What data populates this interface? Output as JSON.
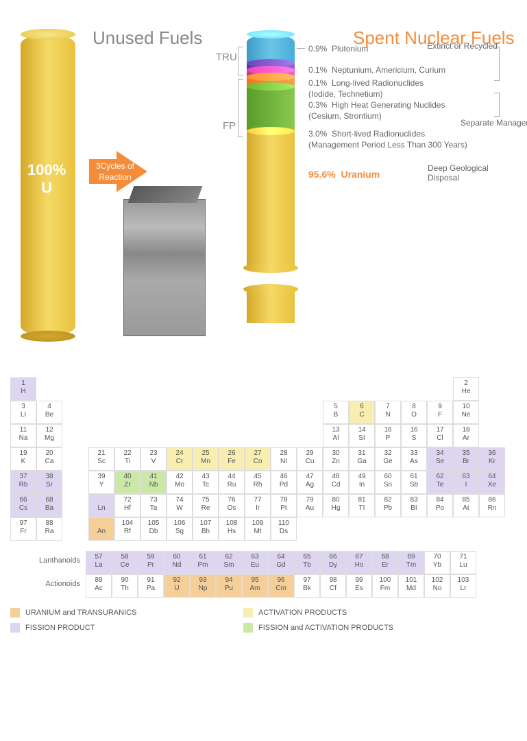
{
  "headers": {
    "unused": "Unused Fuels",
    "spent": "Spent Nuclear Fuels",
    "u100a": "100%",
    "u100b": "U",
    "reaction": "3Cycles of Reaction",
    "tru": "TRU",
    "fp": "FP"
  },
  "segs": [
    {
      "pct": "0.9%",
      "txt": "Plutonium"
    },
    {
      "pct": "0.1%",
      "txt": "Neptunium, Americium, Curium"
    },
    {
      "pct": "0.1%",
      "txt": "Long-lived Radionuclides\n(Iodide, Technetium)"
    },
    {
      "pct": "0.3%",
      "txt": "High Heat Generating Nuclides\n(Cesium, Strontium)"
    },
    {
      "pct": "3.0%",
      "txt": "Short-lived Radionuclides\n(Management Period Less Than 300 Years)"
    },
    {
      "pct": "95.6%",
      "txt": "Uranium"
    }
  ],
  "disposal": [
    "Extinct  or Recycled",
    "Separate Management",
    "Deep Geological Disposal"
  ],
  "colors": {
    "fp": "#ded5f0",
    "ap": "#f7eeb0",
    "fap": "#cce8a8",
    "ut": "#f5cf9a"
  },
  "legend": [
    {
      "c": "#f5cf9a",
      "t": "URANIUM and TRANSURANICS"
    },
    {
      "c": "#f7eeb0",
      "t": "ACTIVATION PRODUCTS"
    },
    {
      "c": "#ded5f0",
      "t": "FISSION PRODUCT"
    },
    {
      "c": "#cce8a8",
      "t": "FISSION and ACTIVATION PRODUCTS"
    }
  ],
  "series": {
    "lanth": "Lanthanoids",
    "act": "Actionoids"
  },
  "rows": [
    [
      {
        "n": "1",
        "s": "H",
        "c": "fp"
      },
      {
        "g": 16
      },
      {
        "n": "2",
        "s": "He"
      }
    ],
    [
      {
        "n": "3",
        "s": "LI"
      },
      {
        "n": "4",
        "s": "Be"
      },
      {
        "g": 10
      },
      {
        "n": "5",
        "s": "B"
      },
      {
        "n": "6",
        "s": "C",
        "c": "ap"
      },
      {
        "n": "7",
        "s": "N"
      },
      {
        "n": "8",
        "s": "O"
      },
      {
        "n": "9",
        "s": "F"
      },
      {
        "n": "10",
        "s": "Ne"
      }
    ],
    [
      {
        "n": "11",
        "s": "Na"
      },
      {
        "n": "12",
        "s": "Mg"
      },
      {
        "g": 10
      },
      {
        "n": "13",
        "s": "Al"
      },
      {
        "n": "14",
        "s": "SI"
      },
      {
        "n": "16",
        "s": "P"
      },
      {
        "n": "16",
        "s": "S"
      },
      {
        "n": "17",
        "s": "Cl"
      },
      {
        "n": "18",
        "s": "Ar"
      }
    ],
    [
      {
        "n": "19",
        "s": "K"
      },
      {
        "n": "20",
        "s": "Ca"
      },
      {
        "g": 1
      },
      {
        "n": "21",
        "s": "Sc"
      },
      {
        "n": "22",
        "s": "Ti"
      },
      {
        "n": "23",
        "s": "V"
      },
      {
        "n": "24",
        "s": "Cr",
        "c": "ap"
      },
      {
        "n": "25",
        "s": "Mn",
        "c": "ap"
      },
      {
        "n": "26",
        "s": "Fe",
        "c": "ap"
      },
      {
        "n": "27",
        "s": "Co",
        "c": "ap"
      },
      {
        "n": "28",
        "s": "NI"
      },
      {
        "n": "29",
        "s": "Cu"
      },
      {
        "n": "30",
        "s": "Zn"
      },
      {
        "n": "31",
        "s": "Ga"
      },
      {
        "n": "32",
        "s": "Ge"
      },
      {
        "n": "33",
        "s": "As"
      },
      {
        "n": "34",
        "s": "Se",
        "c": "fp"
      },
      {
        "n": "35",
        "s": "Br",
        "c": "fp"
      },
      {
        "n": "36",
        "s": "Kr",
        "c": "fp"
      }
    ],
    [
      {
        "n": "37",
        "s": "Rb",
        "c": "fp"
      },
      {
        "n": "38",
        "s": "Sr",
        "c": "fp"
      },
      {
        "g": 1
      },
      {
        "n": "39",
        "s": "Y"
      },
      {
        "n": "40",
        "s": "Zr",
        "c": "fap"
      },
      {
        "n": "41",
        "s": "Nb",
        "c": "fap"
      },
      {
        "n": "42",
        "s": "Mo"
      },
      {
        "n": "43",
        "s": "Tc"
      },
      {
        "n": "44",
        "s": "Ru"
      },
      {
        "n": "45",
        "s": "Rh"
      },
      {
        "n": "46",
        "s": "Pd"
      },
      {
        "n": "47",
        "s": "Ag"
      },
      {
        "n": "48",
        "s": "Cd"
      },
      {
        "n": "49",
        "s": "In"
      },
      {
        "n": "60",
        "s": "Sn"
      },
      {
        "n": "61",
        "s": "Sb"
      },
      {
        "n": "62",
        "s": "Te",
        "c": "fp"
      },
      {
        "n": "63",
        "s": "I",
        "c": "fp"
      },
      {
        "n": "64",
        "s": "Xe",
        "c": "fp"
      }
    ],
    [
      {
        "n": "66",
        "s": "Cs",
        "c": "fp"
      },
      {
        "n": "68",
        "s": "Ba",
        "c": "fp"
      },
      {
        "g": 1
      },
      {
        "n": "",
        "s": "Ln",
        "c": "fp"
      },
      {
        "n": "72",
        "s": "Hf"
      },
      {
        "n": "73",
        "s": "Ta"
      },
      {
        "n": "74",
        "s": "W"
      },
      {
        "n": "75",
        "s": "Re"
      },
      {
        "n": "76",
        "s": "Os"
      },
      {
        "n": "77",
        "s": "Ir"
      },
      {
        "n": "78",
        "s": "Pt"
      },
      {
        "n": "79",
        "s": "Au"
      },
      {
        "n": "80",
        "s": "Hg"
      },
      {
        "n": "81",
        "s": "TI"
      },
      {
        "n": "82",
        "s": "Pb"
      },
      {
        "n": "83",
        "s": "BI"
      },
      {
        "n": "84",
        "s": "Po"
      },
      {
        "n": "85",
        "s": "At"
      },
      {
        "n": "86",
        "s": "Rn"
      }
    ],
    [
      {
        "n": "97",
        "s": "Fr"
      },
      {
        "n": "88",
        "s": "Ra"
      },
      {
        "g": 1
      },
      {
        "n": "",
        "s": "An",
        "c": "ut"
      },
      {
        "n": "104",
        "s": "Rf"
      },
      {
        "n": "105",
        "s": "Db"
      },
      {
        "n": "106",
        "s": "Sg"
      },
      {
        "n": "107",
        "s": "Bh"
      },
      {
        "n": "108",
        "s": "Hs"
      },
      {
        "n": "109",
        "s": "Mt"
      },
      {
        "n": "110",
        "s": "Ds"
      },
      {
        "g": 7
      }
    ]
  ],
  "lanth": [
    {
      "n": "57",
      "s": "La",
      "c": "fp"
    },
    {
      "n": "58",
      "s": "Ce",
      "c": "fp"
    },
    {
      "n": "59",
      "s": "Pr",
      "c": "fp"
    },
    {
      "n": "60",
      "s": "Nd",
      "c": "fp"
    },
    {
      "n": "61",
      "s": "Pm",
      "c": "fp"
    },
    {
      "n": "62",
      "s": "Sm",
      "c": "fp"
    },
    {
      "n": "63",
      "s": "Eu",
      "c": "fp"
    },
    {
      "n": "64",
      "s": "Gd",
      "c": "fp"
    },
    {
      "n": "65",
      "s": "Tb",
      "c": "fp"
    },
    {
      "n": "66",
      "s": "Dy",
      "c": "fp"
    },
    {
      "n": "67",
      "s": "Ho",
      "c": "fp"
    },
    {
      "n": "68",
      "s": "Er",
      "c": "fp"
    },
    {
      "n": "69",
      "s": "Tm",
      "c": "fp"
    },
    {
      "n": "70",
      "s": "Yb"
    },
    {
      "n": "71",
      "s": "Lu"
    }
  ],
  "act": [
    {
      "n": "89",
      "s": "Ac"
    },
    {
      "n": "90",
      "s": "Th"
    },
    {
      "n": "91",
      "s": "Pa"
    },
    {
      "n": "92",
      "s": "U",
      "c": "ut"
    },
    {
      "n": "93",
      "s": "Np",
      "c": "ut"
    },
    {
      "n": "94",
      "s": "Pu",
      "c": "ut"
    },
    {
      "n": "95",
      "s": "Am",
      "c": "ut"
    },
    {
      "n": "96",
      "s": "Cm",
      "c": "ut"
    },
    {
      "n": "97",
      "s": "Bk"
    },
    {
      "n": "98",
      "s": "Cf"
    },
    {
      "n": "99",
      "s": "Es"
    },
    {
      "n": "100",
      "s": "Fm"
    },
    {
      "n": "101",
      "s": "Md"
    },
    {
      "n": "102",
      "s": "No"
    },
    {
      "n": "103",
      "s": "Lr"
    }
  ]
}
